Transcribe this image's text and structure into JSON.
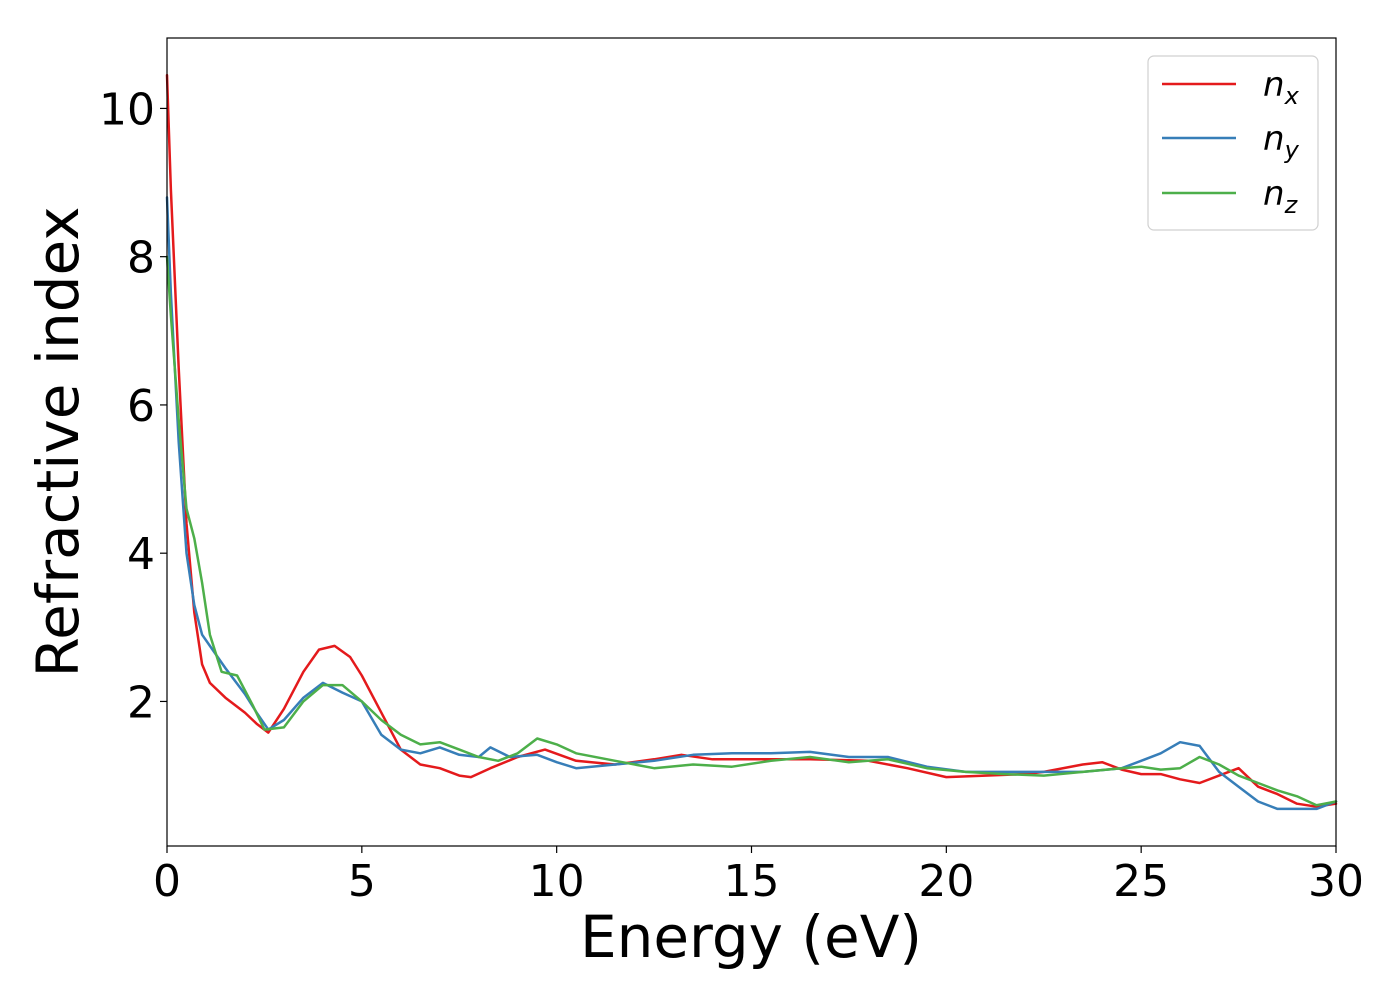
{
  "chart_data": {
    "type": "line",
    "title": "",
    "xlabel": "Energy (eV)",
    "ylabel": "Refractive index",
    "xlim": [
      0,
      30
    ],
    "ylim": [
      0.05,
      10.95
    ],
    "xticks": [
      0,
      5,
      10,
      15,
      20,
      25,
      30
    ],
    "yticks": [
      2,
      4,
      6,
      8,
      10
    ],
    "xtick_labels": [
      "0",
      "5",
      "10",
      "15",
      "20",
      "25",
      "30"
    ],
    "ytick_labels": [
      "2",
      "4",
      "6",
      "8",
      "10"
    ],
    "grid": false,
    "legend_position": "top-right",
    "series": [
      {
        "name": "n_x",
        "label_main": "n",
        "label_sub": "x",
        "color": "#e41a1c",
        "x": [
          0,
          0.1,
          0.3,
          0.5,
          0.7,
          0.9,
          1.1,
          1.5,
          2.0,
          2.3,
          2.6,
          3.0,
          3.5,
          3.9,
          4.3,
          4.7,
          5.0,
          5.5,
          6.0,
          6.5,
          7.0,
          7.5,
          7.8,
          8.3,
          9.0,
          9.7,
          10.5,
          11.5,
          12.5,
          13.2,
          14.0,
          15.0,
          16.5,
          18.0,
          19.0,
          20.0,
          21.0,
          22.0,
          22.5,
          23.5,
          24.0,
          24.5,
          25.0,
          25.5,
          26.0,
          26.5,
          27.0,
          27.5,
          28.0,
          28.5,
          29.0,
          29.5,
          30.0
        ],
        "y": [
          10.45,
          8.9,
          6.5,
          4.4,
          3.2,
          2.5,
          2.25,
          2.05,
          1.85,
          1.7,
          1.58,
          1.9,
          2.4,
          2.7,
          2.75,
          2.6,
          2.35,
          1.85,
          1.35,
          1.15,
          1.1,
          1.0,
          0.98,
          1.1,
          1.25,
          1.35,
          1.2,
          1.15,
          1.22,
          1.28,
          1.22,
          1.22,
          1.22,
          1.2,
          1.1,
          0.98,
          1.0,
          1.02,
          1.05,
          1.15,
          1.18,
          1.08,
          1.02,
          1.02,
          0.95,
          0.9,
          1.0,
          1.1,
          0.85,
          0.75,
          0.62,
          0.58,
          0.62
        ]
      },
      {
        "name": "n_y",
        "label_main": "n",
        "label_sub": "y",
        "color": "#377eb8",
        "x": [
          0,
          0.1,
          0.3,
          0.5,
          0.7,
          0.9,
          1.1,
          1.5,
          2.0,
          2.3,
          2.6,
          3.0,
          3.5,
          4.0,
          4.5,
          5.0,
          5.5,
          6.0,
          6.5,
          7.0,
          7.5,
          8.0,
          8.3,
          8.8,
          9.5,
          10.0,
          10.5,
          11.5,
          12.5,
          13.5,
          14.5,
          15.5,
          16.5,
          17.5,
          18.5,
          19.5,
          20.5,
          21.5,
          22.5,
          23.5,
          24.5,
          25.0,
          25.5,
          26.0,
          26.5,
          27.0,
          27.5,
          28.0,
          28.5,
          29.0,
          29.5,
          30.0
        ],
        "y": [
          8.8,
          7.5,
          5.5,
          4.0,
          3.3,
          2.9,
          2.75,
          2.45,
          2.1,
          1.85,
          1.62,
          1.75,
          2.05,
          2.25,
          2.12,
          2.0,
          1.55,
          1.35,
          1.3,
          1.38,
          1.28,
          1.25,
          1.38,
          1.25,
          1.28,
          1.18,
          1.1,
          1.15,
          1.2,
          1.28,
          1.3,
          1.3,
          1.32,
          1.25,
          1.25,
          1.12,
          1.05,
          1.05,
          1.05,
          1.05,
          1.1,
          1.2,
          1.3,
          1.45,
          1.4,
          1.05,
          0.85,
          0.65,
          0.55,
          0.55,
          0.55,
          0.65
        ]
      },
      {
        "name": "n_z",
        "label_main": "n",
        "label_sub": "z",
        "color": "#4daf4a",
        "x": [
          0,
          0.1,
          0.3,
          0.5,
          0.7,
          0.9,
          1.1,
          1.4,
          1.8,
          2.2,
          2.5,
          3.0,
          3.5,
          4.0,
          4.5,
          5.0,
          5.5,
          6.0,
          6.5,
          7.0,
          7.5,
          8.0,
          8.5,
          9.0,
          9.5,
          10.0,
          10.5,
          11.5,
          12.5,
          13.5,
          14.5,
          15.5,
          16.5,
          17.5,
          18.5,
          19.5,
          20.5,
          21.5,
          22.5,
          23.5,
          24.5,
          25.0,
          25.5,
          26.0,
          26.5,
          27.0,
          27.5,
          28.0,
          28.5,
          29.0,
          29.5,
          30.0
        ],
        "y": [
          8.0,
          7.2,
          5.8,
          4.6,
          4.2,
          3.6,
          2.9,
          2.4,
          2.35,
          1.95,
          1.62,
          1.65,
          2.0,
          2.22,
          2.22,
          2.0,
          1.75,
          1.55,
          1.42,
          1.45,
          1.35,
          1.25,
          1.2,
          1.3,
          1.5,
          1.42,
          1.3,
          1.2,
          1.1,
          1.15,
          1.12,
          1.2,
          1.25,
          1.18,
          1.22,
          1.1,
          1.05,
          1.02,
          1.0,
          1.05,
          1.1,
          1.12,
          1.08,
          1.1,
          1.25,
          1.15,
          1.0,
          0.9,
          0.8,
          0.72,
          0.6,
          0.65
        ]
      }
    ]
  }
}
